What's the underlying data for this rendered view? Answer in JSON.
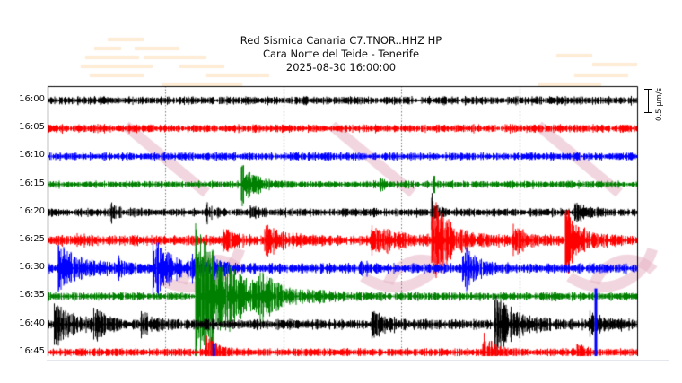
{
  "header": {
    "title": "Red Sismica Canaria C7.TNOR..HHZ HP",
    "subtitle": "Cara Norte del Teide - Tenerife",
    "datetime": "2025-08-30 16:00:00"
  },
  "scale": {
    "label": "0.5 μm/s"
  },
  "colors": {
    "cycle": [
      "#000000",
      "#ff0000",
      "#0000ff",
      "#008000"
    ],
    "frame": "#000000",
    "grid": "#777777",
    "watermark_pink": "#e8b4c4",
    "watermark_orange": "#fddcb0"
  },
  "chart_data": {
    "type": "line",
    "title": "Red Sismica Canaria C7.TNOR..HHZ HP",
    "subtitle": "Cara Norte del Teide - Tenerife",
    "start_time": "2025-08-30 16:00:00",
    "xlabel": "",
    "ylabel": "",
    "grid": "vertical dotted lines at 1/4, 2/4, 3/4 of each 5-minute row",
    "row_minutes": 5,
    "ytick_labels": [
      "16:00",
      "16:05",
      "16:10",
      "16:15",
      "16:20",
      "16:25",
      "16:30",
      "16:35",
      "16:40",
      "16:45"
    ],
    "scale_bar": "0.5 μm/s",
    "traces": [
      {
        "label": "16:00",
        "color": "#000000",
        "noise": 4,
        "events": []
      },
      {
        "label": "16:05",
        "color": "#ff0000",
        "noise": 4,
        "events": []
      },
      {
        "label": "16:10",
        "color": "#0000ff",
        "noise": 4,
        "events": []
      },
      {
        "label": "16:15",
        "color": "#008000",
        "noise": 3.5,
        "events": [
          {
            "x": 0.33,
            "amp": 22,
            "decay": 0.02
          },
          {
            "x": 0.565,
            "amp": 6,
            "decay": 0.005
          },
          {
            "x": 0.655,
            "amp": 8,
            "decay": 0.005
          }
        ]
      },
      {
        "label": "16:20",
        "color": "#000000",
        "noise": 4,
        "events": [
          {
            "x": 0.11,
            "amp": 8,
            "decay": 0.01
          },
          {
            "x": 0.27,
            "amp": 10,
            "decay": 0.01
          },
          {
            "x": 0.345,
            "amp": 6,
            "decay": 0.01
          },
          {
            "x": 0.652,
            "amp": 20,
            "decay": 0.008
          },
          {
            "x": 0.895,
            "amp": 8,
            "decay": 0.02
          }
        ]
      },
      {
        "label": "16:25",
        "color": "#ff0000",
        "noise": 5,
        "events": [
          {
            "x": 0.05,
            "amp": 6,
            "decay": 0.01
          },
          {
            "x": 0.3,
            "amp": 12,
            "decay": 0.02
          },
          {
            "x": 0.37,
            "amp": 12,
            "decay": 0.03
          },
          {
            "x": 0.55,
            "amp": 14,
            "decay": 0.04
          },
          {
            "x": 0.653,
            "amp": 45,
            "decay": 0.03
          },
          {
            "x": 0.79,
            "amp": 14,
            "decay": 0.02
          },
          {
            "x": 0.88,
            "amp": 32,
            "decay": 0.025
          }
        ]
      },
      {
        "label": "16:30",
        "color": "#0000ff",
        "noise": 5,
        "events": [
          {
            "x": 0.02,
            "amp": 30,
            "decay": 0.03
          },
          {
            "x": 0.12,
            "amp": 9,
            "decay": 0.01
          },
          {
            "x": 0.18,
            "amp": 30,
            "decay": 0.03
          },
          {
            "x": 0.245,
            "amp": 10,
            "decay": 0.02
          },
          {
            "x": 0.285,
            "amp": 8,
            "decay": 0.01
          },
          {
            "x": 0.53,
            "amp": 8,
            "decay": 0.01
          },
          {
            "x": 0.705,
            "amp": 24,
            "decay": 0.02
          }
        ]
      },
      {
        "label": "16:35",
        "color": "#008000",
        "noise": 4,
        "events": [
          {
            "x": 0.253,
            "amp": 80,
            "decay": 0.06
          },
          {
            "x": 0.36,
            "amp": 18,
            "decay": 0.02
          }
        ]
      },
      {
        "label": "16:40",
        "color": "#000000",
        "noise": 5,
        "events": [
          {
            "x": 0.012,
            "amp": 20,
            "decay": 0.03
          },
          {
            "x": 0.08,
            "amp": 14,
            "decay": 0.02
          },
          {
            "x": 0.16,
            "amp": 10,
            "decay": 0.02
          },
          {
            "x": 0.55,
            "amp": 16,
            "decay": 0.02
          },
          {
            "x": 0.76,
            "amp": 30,
            "decay": 0.035
          },
          {
            "x": 0.92,
            "amp": 10,
            "decay": 0.03
          }
        ]
      },
      {
        "label": "16:45",
        "color": "#ff0000",
        "noise": 4,
        "events": [
          {
            "x": 0.27,
            "amp": 22,
            "decay": 0.015
          },
          {
            "x": 0.74,
            "amp": 20,
            "decay": 0.015
          },
          {
            "x": 0.9,
            "amp": 8,
            "decay": 0.01
          }
        ]
      }
    ],
    "overlays": [
      {
        "row": "16:45",
        "color": "#0000ff",
        "x": 0.282,
        "amp": 10
      },
      {
        "row": "16:40",
        "color": "#0000ff",
        "x": 0.93,
        "amp": 40
      }
    ]
  }
}
